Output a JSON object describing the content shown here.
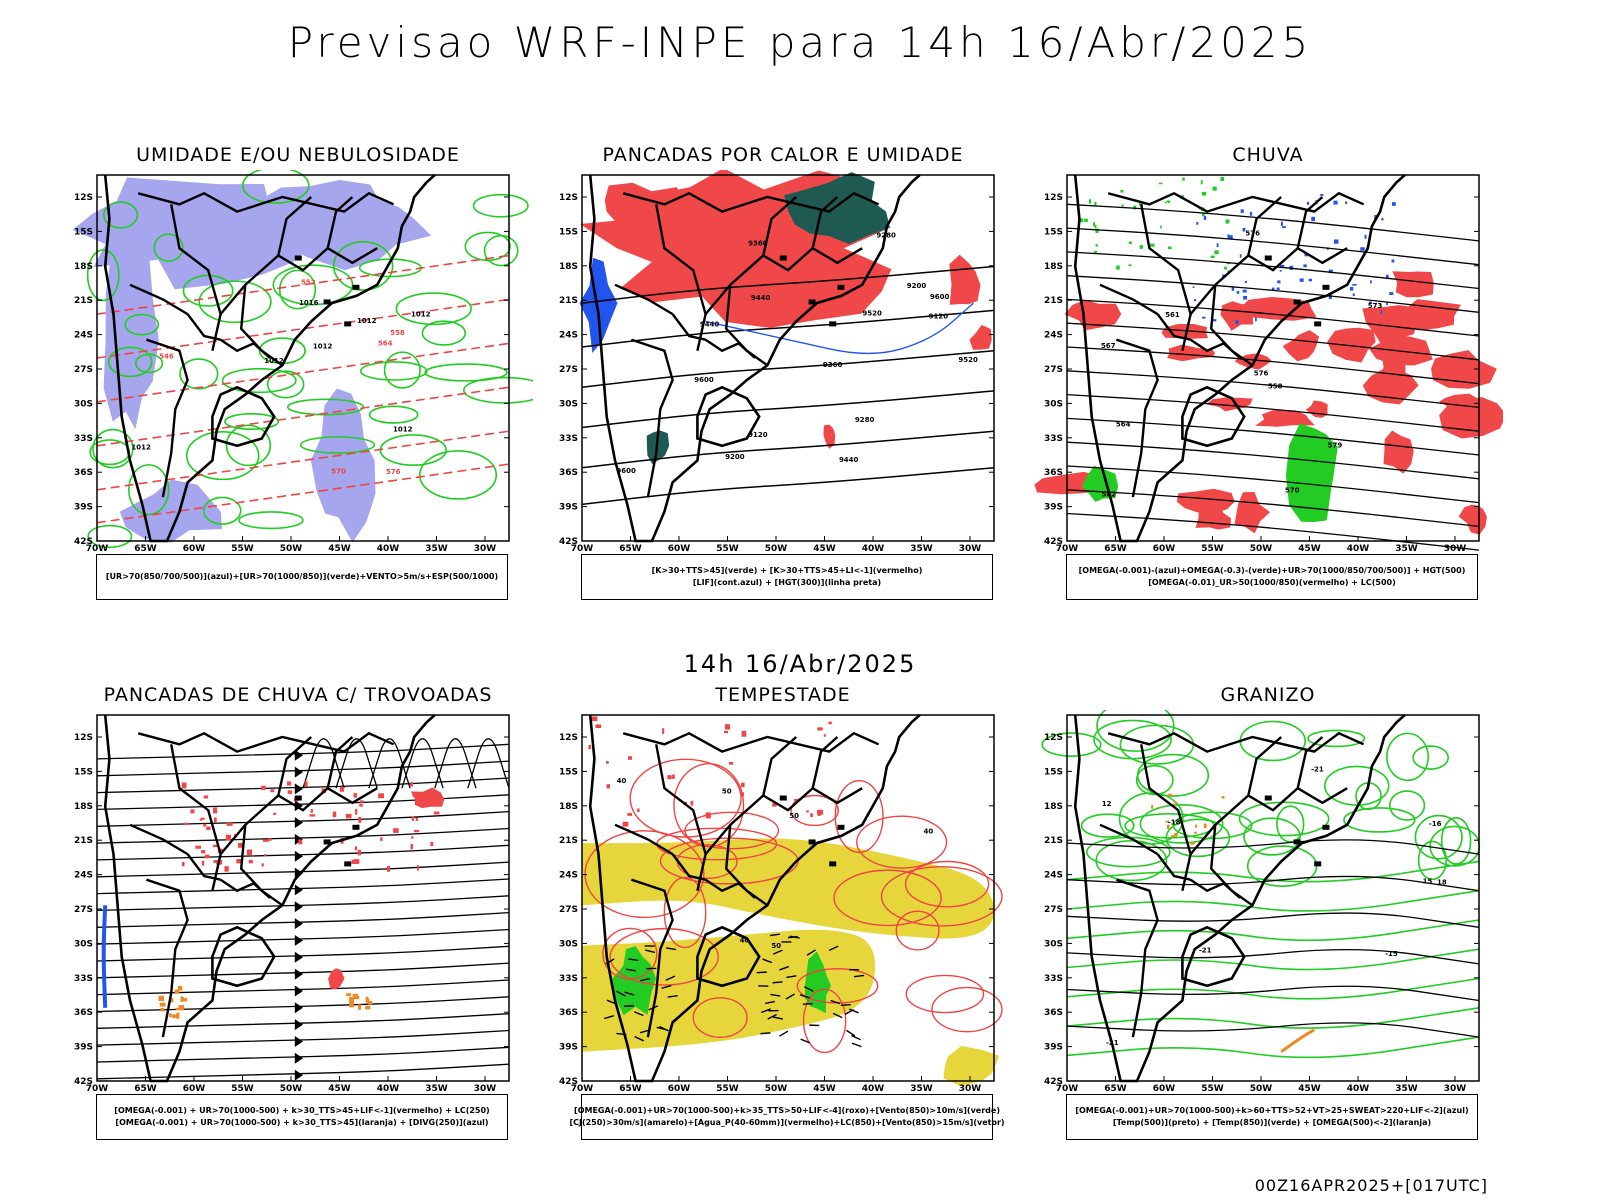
{
  "header": {
    "title": "Previsao WRF-INPE  para 14h 16/Abr/2025"
  },
  "middle": {
    "title": "14h 16/Abr/2025"
  },
  "footer": {
    "stamp": "00Z16APR2025+[017UTC]"
  },
  "axes": {
    "lat_labels": [
      "12S",
      "15S",
      "18S",
      "21S",
      "24S",
      "27S",
      "30S",
      "33S",
      "36S",
      "39S",
      "42S"
    ],
    "lon_labels": [
      "70W",
      "65W",
      "60W",
      "55W",
      "50W",
      "45W",
      "40W",
      "35W",
      "30W"
    ]
  },
  "colors": {
    "blue_fill": "#a6a6ee",
    "red_fill": "#f04848",
    "dark_green": "#1f5a52",
    "yellow": "#e6d63c",
    "green_line": "#22cc22",
    "red_line": "#ee4444",
    "blue_line": "#2255ee",
    "orange": "#ee8822"
  },
  "panels": [
    {
      "id": "umidade",
      "title": "UMIDADE E/OU NEBULOSIDADE",
      "legend": [
        "[UR>70(850/700/500)](azul)+[UR>70(1000/850)](verde)+VENTO>5m/s+ESP(500/1000)"
      ],
      "labels": [
        "1012",
        "1012",
        "1012",
        "1012",
        "1012",
        "1012",
        "1016",
        "576",
        "570",
        "564",
        "558",
        "552",
        "546"
      ]
    },
    {
      "id": "pancadas-calor",
      "title": "PANCADAS POR CALOR E UMIDADE",
      "legend": [
        "[K>30+TTS>45](verde) + [K>30+TTS>45+LI<-1](vermelho)",
        "[LIF](cont.azul) + [HGT(300)](linha preta)"
      ],
      "labels": [
        "9600",
        "9600",
        "9600",
        "9520",
        "9520",
        "9440",
        "9440",
        "9440",
        "9360",
        "9360",
        "9280",
        "9280",
        "9200",
        "9200",
        "9120",
        "9120"
      ]
    },
    {
      "id": "chuva",
      "title": "CHUVA",
      "legend": [
        "[OMEGA(-0.001)-(azul)+OMEGA(-0.3)-(verde)+UR>70(1000/850/700/500)] + HGT(500)",
        "[OMEGA(-0.01)_UR>50(1000/850)(vermelho) + LC(500)"
      ],
      "labels": [
        "582",
        "579",
        "576",
        "576",
        "573",
        "570",
        "567",
        "564",
        "561",
        "558"
      ]
    },
    {
      "id": "pancadas-trovoadas",
      "title": "PANCADAS DE CHUVA C/ TROVOADAS",
      "legend": [
        "[OMEGA(-0.001) + UR>70(1000-500) + k>30_TTS>45+LIF<-1](vermelho) + LC(250)",
        "[OMEGA(-0.001) + UR>70(1000-500) + k>30_TTS>45](laranja) + [DIVG(250)](azul)"
      ],
      "labels": []
    },
    {
      "id": "tempestade",
      "title": "TEMPESTADE",
      "legend": [
        "[OMEGA(-0.001)+UR>70(1000-500)+k>35_TTS>50+LIF<-4](roxo)+[Vento(850)>10m/s](verde)",
        "[CJ(250)>30m/s](amarelo)+[Agua_P(40-60mm)](vermelho)+LC(850)+[Vento(850)>15m/s](vetor)"
      ],
      "labels": [
        "40",
        "50",
        "50",
        "40",
        "40",
        "50"
      ]
    },
    {
      "id": "granizo",
      "title": "GRANIZO",
      "legend": [
        "[OMEGA(-0.001)+UR>70(1000-500)+k>60+TTS>52+VT>25+SWEAT>220+LIF<-2](azul)",
        "[Temp(500)](preto) + [Temp(850)](verde) + [OMEGA(500)<-2](laranja)"
      ],
      "labels": [
        "12",
        "15",
        "18",
        "-15",
        "-16",
        "-18",
        "-21",
        "-21",
        "-21"
      ]
    }
  ]
}
